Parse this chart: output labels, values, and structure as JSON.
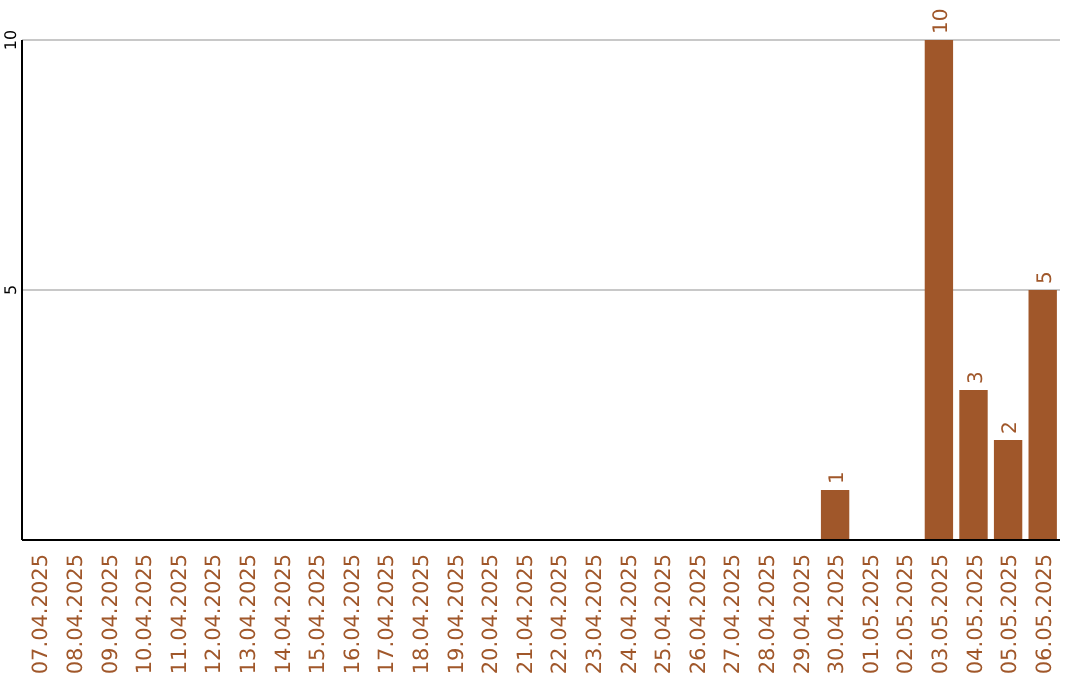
{
  "chart_data": {
    "type": "bar",
    "categories": [
      "07.04.2025",
      "08.04.2025",
      "09.04.2025",
      "10.04.2025",
      "11.04.2025",
      "12.04.2025",
      "13.04.2025",
      "14.04.2025",
      "15.04.2025",
      "16.04.2025",
      "17.04.2025",
      "18.04.2025",
      "19.04.2025",
      "20.04.2025",
      "21.04.2025",
      "22.04.2025",
      "23.04.2025",
      "24.04.2025",
      "25.04.2025",
      "26.04.2025",
      "27.04.2025",
      "28.04.2025",
      "29.04.2025",
      "30.04.2025",
      "01.05.2025",
      "02.05.2025",
      "03.05.2025",
      "04.05.2025",
      "05.05.2025",
      "06.05.2025"
    ],
    "values": [
      0,
      0,
      0,
      0,
      0,
      0,
      0,
      0,
      0,
      0,
      0,
      0,
      0,
      0,
      0,
      0,
      0,
      0,
      0,
      0,
      0,
      0,
      0,
      1,
      0,
      0,
      10,
      3,
      2,
      5
    ],
    "value_labels": [
      null,
      null,
      null,
      null,
      null,
      null,
      null,
      null,
      null,
      null,
      null,
      null,
      null,
      null,
      null,
      null,
      null,
      null,
      null,
      null,
      null,
      null,
      null,
      "1",
      null,
      null,
      "10",
      "3",
      "2",
      "5"
    ],
    "color": "#a0572a",
    "ylim": [
      0,
      10
    ],
    "yticks": [
      5,
      10
    ],
    "grid": "y"
  }
}
